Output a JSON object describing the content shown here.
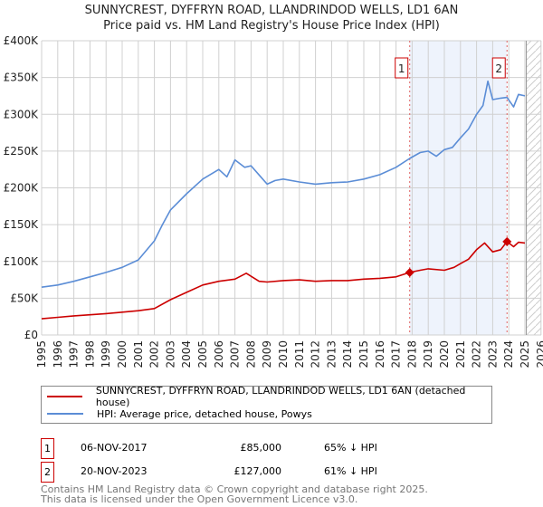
{
  "title": "SUNNYCREST, DYFFRYN ROAD, LLANDRINDOD WELLS, LD1 6AN",
  "subtitle": "Price paid vs. HM Land Registry's House Price Index (HPI)",
  "chart_data": {
    "type": "line",
    "xlim": [
      1995,
      2026
    ],
    "ylim": [
      0,
      400000
    ],
    "x_ticks": [
      "1995",
      "1996",
      "1997",
      "1998",
      "1999",
      "2000",
      "2001",
      "2002",
      "2003",
      "2004",
      "2005",
      "2006",
      "2007",
      "2008",
      "2009",
      "2010",
      "2011",
      "2012",
      "2013",
      "2014",
      "2015",
      "2016",
      "2017",
      "2018",
      "2019",
      "2020",
      "2021",
      "2022",
      "2023",
      "2024",
      "2025",
      "2026"
    ],
    "y_ticks": [
      {
        "v": 0,
        "label": "£0"
      },
      {
        "v": 50000,
        "label": "£50K"
      },
      {
        "v": 100000,
        "label": "£100K"
      },
      {
        "v": 150000,
        "label": "£150K"
      },
      {
        "v": 200000,
        "label": "£200K"
      },
      {
        "v": 250000,
        "label": "£250K"
      },
      {
        "v": 300000,
        "label": "£300K"
      },
      {
        "v": 350000,
        "label": "£350K"
      },
      {
        "v": 400000,
        "label": "£400K"
      }
    ],
    "grid": true,
    "series": [
      {
        "name": "SUNNYCREST, DYFFRYN ROAD, LLANDRINDOD WELLS, LD1 6AN (detached house)",
        "color": "#cc0000",
        "x": [
          1995,
          1996,
          1997,
          1998,
          1999,
          2000,
          2001,
          2002,
          2003,
          2004,
          2005,
          2006,
          2007,
          2007.7,
          2008.5,
          2009,
          2010,
          2011,
          2012,
          2013,
          2014,
          2015,
          2016,
          2017,
          2017.85,
          2018.5,
          2019,
          2020,
          2020.6,
          2021,
          2021.5,
          2022,
          2022.5,
          2023,
          2023.5,
          2023.89,
          2024.3,
          2024.6,
          2025
        ],
        "y": [
          22000,
          24000,
          26000,
          27500,
          29000,
          31000,
          33000,
          36000,
          48000,
          58000,
          68000,
          73000,
          76000,
          84000,
          73000,
          72000,
          74000,
          75000,
          73000,
          74000,
          74000,
          76000,
          77000,
          79000,
          85000,
          88000,
          90000,
          88000,
          92000,
          97000,
          103000,
          116000,
          125000,
          113000,
          116000,
          127000,
          120000,
          126000,
          125000
        ]
      },
      {
        "name": "HPI: Average price, detached house, Powys",
        "color": "#5b8dd6",
        "x": [
          1995,
          1996,
          1997,
          1998,
          1999,
          2000,
          2001,
          2002,
          2002.5,
          2003,
          2004,
          2005,
          2006,
          2006.5,
          2007,
          2007.6,
          2008,
          2008.6,
          2009,
          2009.5,
          2010,
          2011,
          2012,
          2013,
          2014,
          2015,
          2016,
          2017,
          2017.85,
          2018.5,
          2019,
          2019.5,
          2020,
          2020.5,
          2021,
          2021.5,
          2022,
          2022.4,
          2022.7,
          2023,
          2023.5,
          2023.89,
          2024.3,
          2024.6,
          2025
        ],
        "y": [
          65000,
          68000,
          73000,
          79000,
          85000,
          92000,
          102000,
          128000,
          150000,
          170000,
          192000,
          212000,
          225000,
          215000,
          238000,
          228000,
          230000,
          215000,
          205000,
          210000,
          212000,
          208000,
          205000,
          207000,
          208000,
          212000,
          218000,
          228000,
          240000,
          248000,
          250000,
          243000,
          252000,
          255000,
          268000,
          280000,
          300000,
          312000,
          345000,
          320000,
          322000,
          323000,
          310000,
          327000,
          325000
        ]
      }
    ],
    "sales": [
      {
        "id": "1",
        "x": 2017.85,
        "y": 85000
      },
      {
        "id": "2",
        "x": 2023.89,
        "y": 127000
      }
    ],
    "legend_placement": "below"
  },
  "legend": {
    "property": "SUNNYCREST, DYFFRYN ROAD, LLANDRINDOD WELLS, LD1 6AN (detached house)",
    "hpi": "HPI: Average price, detached house, Powys"
  },
  "sales_table": [
    {
      "num": "1",
      "date": "06-NOV-2017",
      "price": "£85,000",
      "hpi": "65% ↓ HPI"
    },
    {
      "num": "2",
      "date": "20-NOV-2023",
      "price": "£127,000",
      "hpi": "61% ↓ HPI"
    }
  ],
  "footer": {
    "line1": "Contains HM Land Registry data © Crown copyright and database right 2025.",
    "line2": "This data is licensed under the Open Government Licence v3.0."
  }
}
